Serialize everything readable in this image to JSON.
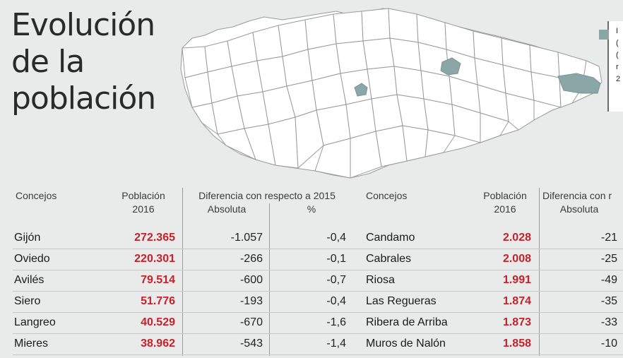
{
  "title": {
    "line1": "Evolución",
    "line2": "de la",
    "line3": "población"
  },
  "legend": {
    "lines": [
      "I",
      "(",
      "(",
      "r",
      "2"
    ]
  },
  "colors": {
    "highlight": "#8ba6a7",
    "population": "#c8202a",
    "map_fill": "#ffffff",
    "map_border": "#9a9a9a"
  },
  "table": {
    "left": {
      "headers": {
        "concejos": "Concejos",
        "poblacion_1": "Población",
        "poblacion_2": "2016",
        "diferencia": "Diferencia con respecto a 2015",
        "absoluta": "Absoluta",
        "porcentaje": "%"
      },
      "rows": [
        {
          "name": "Gijón",
          "population": "272.365",
          "absolute": "-1.057",
          "percent": "-0,4"
        },
        {
          "name": "Oviedo",
          "population": "220.301",
          "absolute": "-266",
          "percent": "-0,1"
        },
        {
          "name": "Avilés",
          "population": "79.514",
          "absolute": "-600",
          "percent": "-0,7"
        },
        {
          "name": "Siero",
          "population": "51.776",
          "absolute": "-193",
          "percent": "-0,4"
        },
        {
          "name": "Langreo",
          "population": "40.529",
          "absolute": "-670",
          "percent": "-1,6"
        },
        {
          "name": "Mieres",
          "population": "38.962",
          "absolute": "-543",
          "percent": "-1,4"
        }
      ]
    },
    "right": {
      "headers": {
        "concejos": "Concejos",
        "poblacion_1": "Población",
        "poblacion_2": "2016",
        "diferencia": "Diferencia con r",
        "absoluta": "Absoluta"
      },
      "rows": [
        {
          "name": "Candamo",
          "population": "2.028",
          "absolute": "-21"
        },
        {
          "name": "Cabrales",
          "population": "2.008",
          "absolute": "-25"
        },
        {
          "name": "Riosa",
          "population": "1.991",
          "absolute": "-49"
        },
        {
          "name": "Las Regueras",
          "population": "1.874",
          "absolute": "-35"
        },
        {
          "name": "Ribera de Arriba",
          "population": "1.873",
          "absolute": "-33"
        },
        {
          "name": "Muros de Nalón",
          "population": "1.858",
          "absolute": "-10"
        }
      ]
    }
  }
}
